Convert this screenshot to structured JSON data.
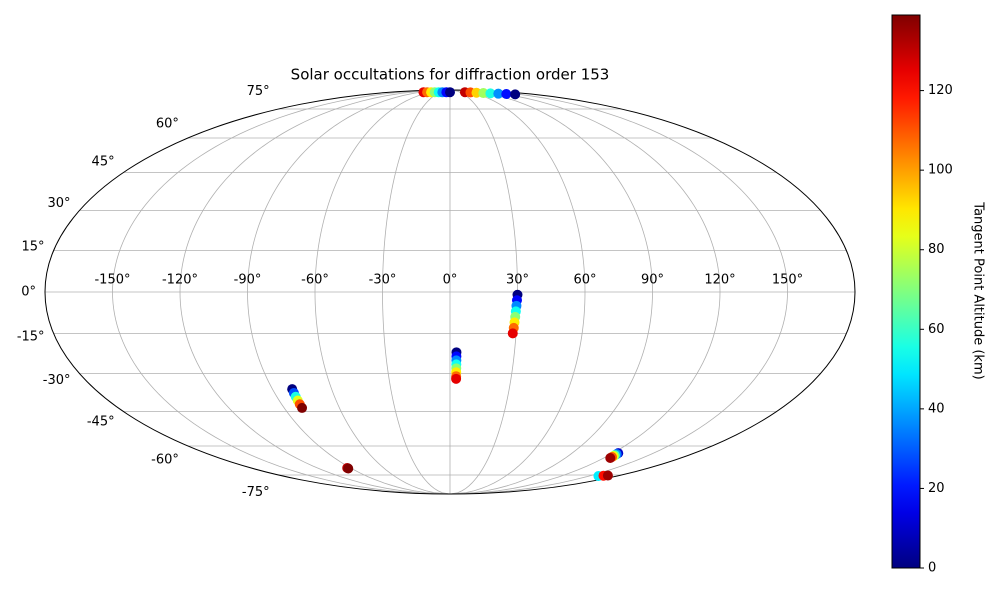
{
  "chart_data": {
    "type": "scatter",
    "projection": "mollweide",
    "title": "Solar occultations for diffraction order 153",
    "x": [
      -80,
      -69,
      -57,
      -46,
      -34,
      -23,
      -11,
      0,
      45,
      59,
      72,
      86,
      99,
      113,
      126,
      140,
      30,
      29.8,
      29.6,
      29.4,
      29.2,
      29,
      28.8,
      28.5,
      3,
      3,
      3,
      3,
      3,
      3,
      3,
      3,
      -80,
      -80.1,
      -80.2,
      -80.2,
      -80.3,
      -80.3,
      -93,
      -93,
      124,
      124.2,
      124.4,
      124.6,
      124.8,
      125,
      160,
      164,
      168
    ],
    "y": [
      87,
      87,
      87,
      87,
      87,
      87,
      87,
      87,
      87,
      86.8,
      86.5,
      86.2,
      85.9,
      85.6,
      85.3,
      85,
      -1,
      -3,
      -5,
      -7,
      -9,
      -11,
      -13,
      -15,
      -22,
      -23.5,
      -25,
      -26.5,
      -28,
      -29.5,
      -31,
      -32,
      -36,
      -37.5,
      -39,
      -40.5,
      -42,
      -43.5,
      -71,
      -71.3,
      -63.4,
      -63.9,
      -64.4,
      -64.8,
      -65.3,
      -65.8,
      -75.6,
      -75.4,
      -75.3
    ],
    "c": [
      125,
      107,
      89,
      71,
      54,
      36,
      18,
      0,
      130,
      111,
      93,
      74,
      56,
      37,
      19,
      0,
      0,
      18,
      36,
      54,
      71,
      89,
      107,
      125,
      0,
      18,
      36,
      54,
      71,
      89,
      107,
      125,
      0,
      28,
      56,
      83,
      111,
      139,
      130,
      139,
      10,
      35,
      60,
      85,
      110,
      135,
      50,
      120,
      135
    ],
    "xlim": [
      -180,
      180
    ],
    "ylim": [
      -90,
      90
    ],
    "xticks": [
      {
        "value": -150,
        "label": "-150°"
      },
      {
        "value": -120,
        "label": "-120°"
      },
      {
        "value": -90,
        "label": "-90°"
      },
      {
        "value": -60,
        "label": "-60°"
      },
      {
        "value": -30,
        "label": "-30°"
      },
      {
        "value": 0,
        "label": "0°"
      },
      {
        "value": 30,
        "label": "30°"
      },
      {
        "value": 60,
        "label": "60°"
      },
      {
        "value": 90,
        "label": "90°"
      },
      {
        "value": 120,
        "label": "120°"
      },
      {
        "value": 150,
        "label": "150°"
      }
    ],
    "yticks": [
      {
        "value": 75,
        "label": "75°"
      },
      {
        "value": 60,
        "label": "60°"
      },
      {
        "value": 45,
        "label": "45°"
      },
      {
        "value": 30,
        "label": "30°"
      },
      {
        "value": 15,
        "label": "15°"
      },
      {
        "value": 0,
        "label": "0°"
      },
      {
        "value": -15,
        "label": "-15°"
      },
      {
        "value": -30,
        "label": "-30°"
      },
      {
        "value": -45,
        "label": "-45°"
      },
      {
        "value": -60,
        "label": "-60°"
      },
      {
        "value": -75,
        "label": "-75°"
      }
    ],
    "grid": true,
    "colormap": "jet",
    "colorbar": {
      "label": "Tangent Point Altitude (km)",
      "lim": [
        0,
        139
      ],
      "ticks": [
        0,
        20,
        40,
        60,
        80,
        100,
        120
      ]
    }
  }
}
